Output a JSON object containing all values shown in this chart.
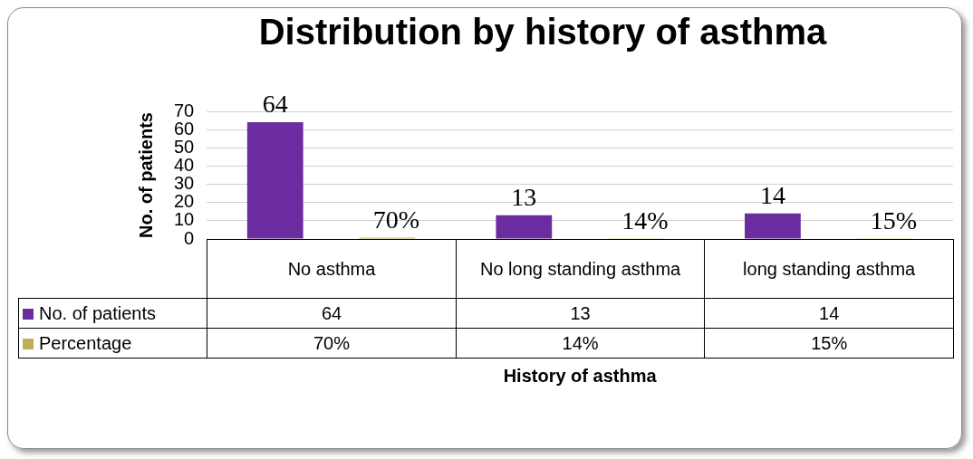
{
  "chart_data": {
    "type": "bar",
    "title": "Distribution by history of asthma",
    "xlabel": "History of asthma",
    "ylabel": "No. of patients",
    "categories": [
      "No asthma",
      "No long standing asthma",
      "long standing asthma"
    ],
    "series": [
      {
        "name": "No. of patients",
        "color": "#6a2c9e",
        "values": [
          64,
          13,
          14
        ],
        "value_labels": [
          "64",
          "13",
          "14"
        ]
      },
      {
        "name": "Percentage",
        "color": "#bfae5a",
        "values": [
          0.7,
          0.14,
          0.15
        ],
        "value_labels": [
          "70%",
          "14%",
          "15%"
        ]
      }
    ],
    "ylim": [
      0,
      70
    ],
    "yticks": [
      0,
      10,
      20,
      30,
      40,
      50,
      60,
      70
    ],
    "grid": "y",
    "legend": "bottom left"
  }
}
